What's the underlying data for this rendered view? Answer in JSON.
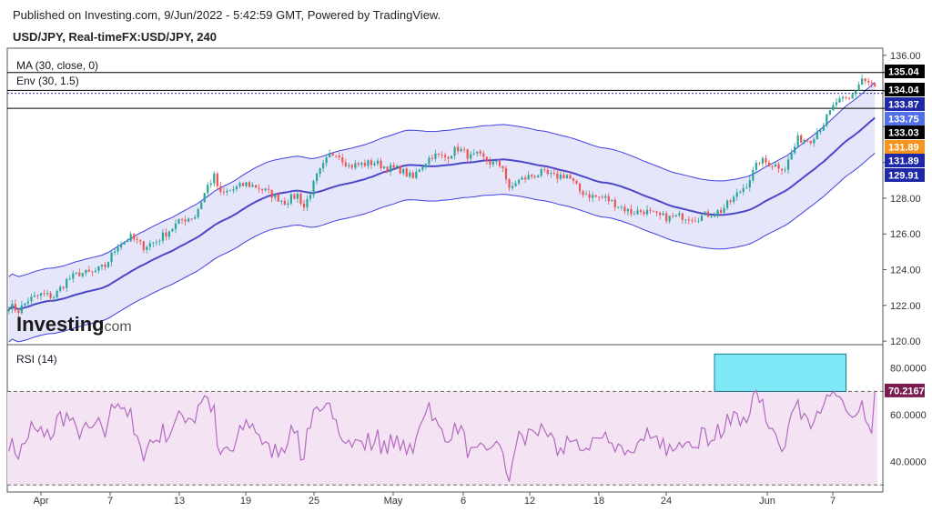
{
  "header": {
    "published": "Published on Investing.com, 9/Jun/2022 - 5:42:59 GMT, Powered by TradingView.",
    "symbol": "USD/JPY, Real-timeFX:USD/JPY, 240"
  },
  "legend": {
    "ma": "MA (30, close, 0)",
    "env": "Env (30, 1.5)",
    "rsi": "RSI (14)"
  },
  "logo": {
    "main": "Investing",
    "suffix": ".com"
  },
  "colors": {
    "up": "#26a69a",
    "down": "#ef5350",
    "ma": "#4b48c8",
    "band": "#3f3fe0",
    "band_fill": "#e6e6fb",
    "rsi": "#b36ac0",
    "rsi_fill": "#f3e3f3",
    "highlight": "#7fe8f6",
    "ma_label": "#1f29a8",
    "env_label": "#5270e8",
    "orange_label": "#f5941f",
    "rsi_label": "#7a1b52"
  },
  "price_labels": [
    {
      "value": "135.04",
      "color": "#000000"
    },
    {
      "value": "134.04",
      "color": "#000000"
    },
    {
      "value": "133.87",
      "color": "#1f29a8"
    },
    {
      "value": "133.75",
      "color": "#5270e8"
    },
    {
      "value": "133.03",
      "color": "#000000"
    },
    {
      "value": "131.89",
      "color": "#f5941f"
    },
    {
      "value": "131.89",
      "color": "#1f29a8"
    },
    {
      "value": "129.91",
      "color": "#1f29a8"
    }
  ],
  "rsi_label": "70.2167",
  "chart_data": [
    {
      "type": "candlestick",
      "title": "USD/JPY, Real-timeFX:USD/JPY, 240",
      "y_ticks": [
        "136.00",
        "134.00",
        "132.00",
        "130.00",
        "128.00",
        "126.00",
        "124.00",
        "122.00",
        "120.00"
      ],
      "ylim": [
        119.8,
        136.4
      ],
      "x_ticks": [
        "Apr",
        "7",
        "13",
        "19",
        "25",
        "May",
        "6",
        "12",
        "18",
        "24",
        "Jun",
        "7"
      ],
      "horizontal_lines": [
        135.04,
        134.04,
        133.03
      ],
      "price_anchors": [
        [
          0,
          122.0
        ],
        [
          3,
          121.7
        ],
        [
          6,
          122.3
        ],
        [
          10,
          122.6
        ],
        [
          14,
          122.5
        ],
        [
          18,
          123.4
        ],
        [
          22,
          123.8
        ],
        [
          26,
          123.8
        ],
        [
          30,
          124.2
        ],
        [
          34,
          125.4
        ],
        [
          38,
          125.8
        ],
        [
          42,
          125.3
        ],
        [
          46,
          125.6
        ],
        [
          50,
          126.2
        ],
        [
          54,
          126.8
        ],
        [
          58,
          127.0
        ],
        [
          62,
          128.7
        ],
        [
          64,
          129.2
        ],
        [
          66,
          128.2
        ],
        [
          70,
          128.5
        ],
        [
          74,
          128.8
        ],
        [
          78,
          128.6
        ],
        [
          82,
          128.2
        ],
        [
          86,
          127.8
        ],
        [
          90,
          128.2
        ],
        [
          92,
          127.5
        ],
        [
          96,
          129.2
        ],
        [
          100,
          130.4
        ],
        [
          102,
          130.6
        ],
        [
          106,
          129.8
        ],
        [
          110,
          129.9
        ],
        [
          114,
          130.0
        ],
        [
          118,
          129.7
        ],
        [
          122,
          129.6
        ],
        [
          126,
          129.1
        ],
        [
          128,
          129.7
        ],
        [
          132,
          130.4
        ],
        [
          136,
          130.3
        ],
        [
          140,
          130.8
        ],
        [
          144,
          130.3
        ],
        [
          146,
          130.4
        ],
        [
          150,
          130.0
        ],
        [
          154,
          129.8
        ],
        [
          156,
          128.4
        ],
        [
          158,
          128.9
        ],
        [
          162,
          129.2
        ],
        [
          166,
          129.4
        ],
        [
          170,
          129.2
        ],
        [
          174,
          129.3
        ],
        [
          178,
          128.4
        ],
        [
          182,
          128.1
        ],
        [
          186,
          128.0
        ],
        [
          190,
          127.6
        ],
        [
          194,
          127.2
        ],
        [
          198,
          127.3
        ],
        [
          202,
          127.0
        ],
        [
          206,
          126.9
        ],
        [
          210,
          127.0
        ],
        [
          214,
          126.9
        ],
        [
          218,
          127.1
        ],
        [
          222,
          127.3
        ],
        [
          226,
          128.0
        ],
        [
          230,
          128.8
        ],
        [
          234,
          130.1
        ],
        [
          238,
          129.9
        ],
        [
          242,
          129.7
        ],
        [
          246,
          131.3
        ],
        [
          250,
          131.3
        ],
        [
          254,
          132.2
        ],
        [
          258,
          133.4
        ],
        [
          262,
          133.5
        ],
        [
          266,
          134.7
        ],
        [
          270,
          134.2
        ]
      ],
      "n_bars": 271,
      "ma": {
        "name": "MA (30, close, 0)",
        "period": 30
      },
      "envelope": {
        "name": "Env (30, 1.5)",
        "percent": 1.5
      }
    },
    {
      "type": "line",
      "title": "RSI (14)",
      "y_ticks": [
        "80.0000",
        "60.0000",
        "40.0000"
      ],
      "ylim": [
        27,
        90
      ],
      "levels": [
        70,
        30
      ],
      "last_value": 70.2167,
      "highlight_box": {
        "x_bar": [
          220,
          261
        ],
        "y": [
          70,
          86
        ]
      }
    }
  ]
}
